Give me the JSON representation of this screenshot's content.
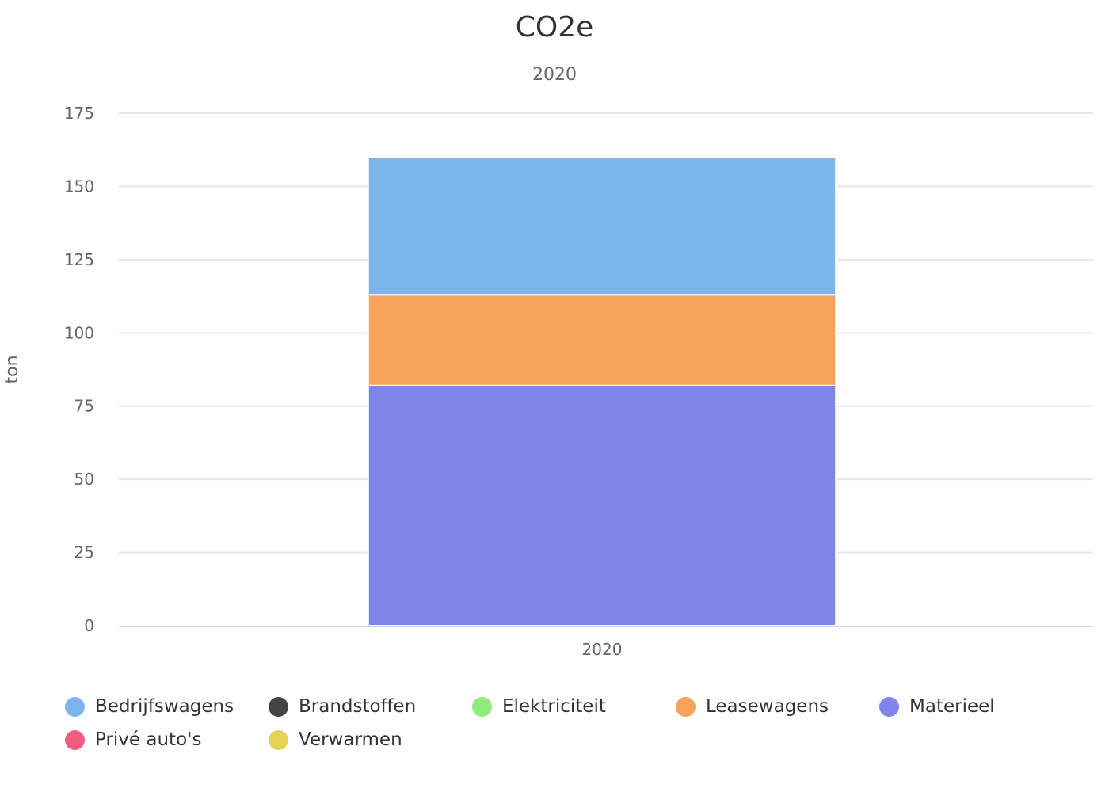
{
  "chart_data": {
    "type": "bar",
    "stacked": true,
    "title": "CO2e",
    "subtitle": "2020",
    "xlabel": "",
    "ylabel": "ton",
    "categories": [
      "2020"
    ],
    "ylim": [
      0,
      175
    ],
    "yticks": [
      0,
      25,
      50,
      75,
      100,
      125,
      150,
      175
    ],
    "grid": true,
    "legend_position": "bottom",
    "series": [
      {
        "name": "Bedrijfswagens",
        "color": "#7cb5ec",
        "values": [
          47
        ]
      },
      {
        "name": "Brandstoffen",
        "color": "#434348",
        "values": [
          0
        ]
      },
      {
        "name": "Elektriciteit",
        "color": "#90ed7d",
        "values": [
          0
        ]
      },
      {
        "name": "Leasewagens",
        "color": "#f7a35c",
        "values": [
          31
        ]
      },
      {
        "name": "Materieel",
        "color": "#8085e9",
        "values": [
          82
        ]
      },
      {
        "name": "Privé auto's",
        "color": "#f15c80",
        "values": [
          0
        ]
      },
      {
        "name": "Verwarmen",
        "color": "#e4d354",
        "values": [
          0
        ]
      }
    ]
  }
}
